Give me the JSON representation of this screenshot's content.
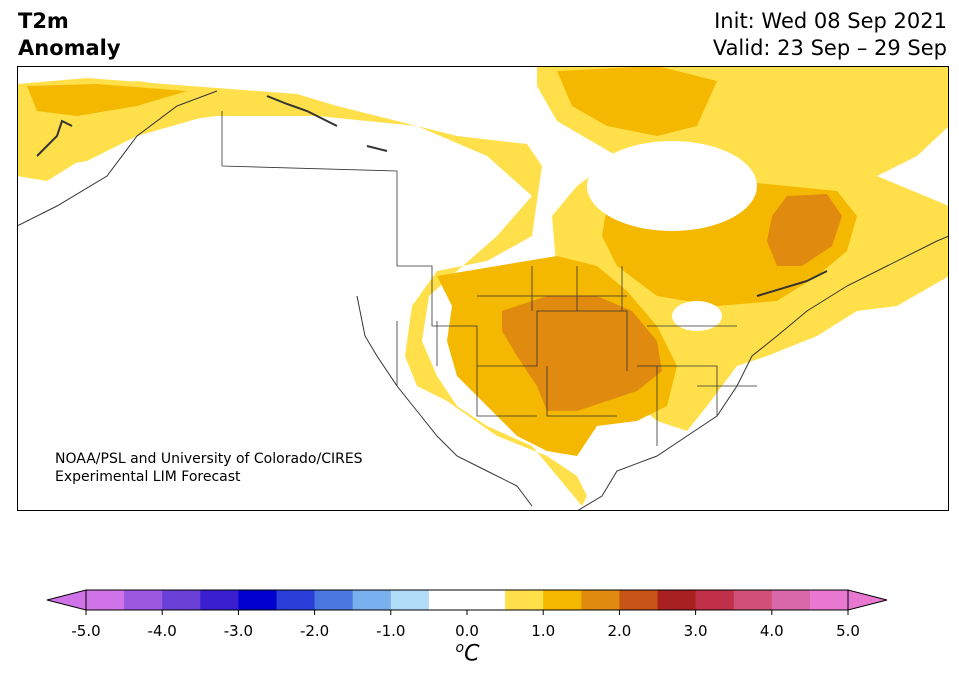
{
  "title": {
    "line1": "T2m",
    "line2": "Anomaly"
  },
  "dates": {
    "init": "Init: Wed 08 Sep 2021",
    "valid": "Valid: 23 Sep – 29 Sep"
  },
  "credit": {
    "line1": "NOAA/PSL and University of Colorado/CIRES",
    "line2": "Experimental LIM Forecast"
  },
  "colorbar": {
    "unit_sup": "o",
    "unit": "C",
    "ticks": [
      "-5.0",
      "-4.0",
      "-3.0",
      "-2.0",
      "-1.0",
      "0.0",
      "1.0",
      "2.0",
      "3.0",
      "4.0",
      "5.0"
    ],
    "colors": [
      "#d173e8",
      "#9b59e0",
      "#6a3fd6",
      "#3a1fd0",
      "#0000d0",
      "#2a3fd8",
      "#4a78e0",
      "#78b0ee",
      "#b0dcf8",
      "#ffffff",
      "#ffffff",
      "#ffe04a",
      "#f5b800",
      "#e08a10",
      "#c85418",
      "#a82020",
      "#c03048",
      "#d05078",
      "#d868a8",
      "#e878d0"
    ],
    "under_color": "#d173e8",
    "over_color": "#e878d0"
  },
  "map_colors": {
    "land": "#ffffff",
    "c05": "#ffe04a",
    "c10": "#f5b800",
    "c15": "#e08a10"
  }
}
